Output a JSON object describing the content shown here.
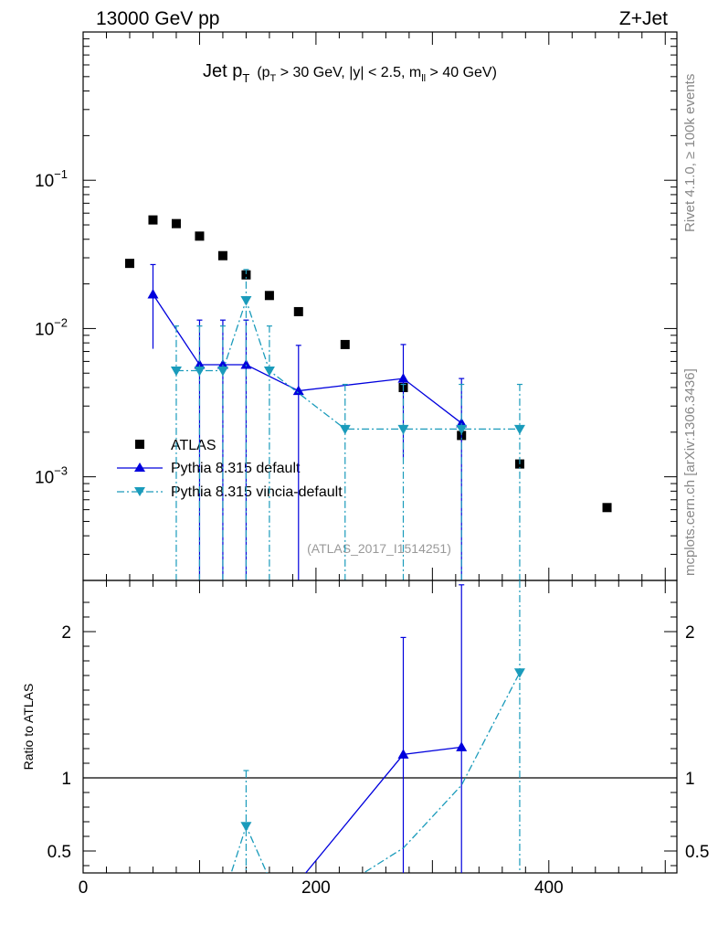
{
  "header": {
    "energy": "13000 GeV pp",
    "process": "Z+Jet",
    "side_rivet": "Rivet 4.1.0, ≥ 100k events",
    "side_mcplots": "mcplots.cern.ch [arXiv:1306.3436]",
    "analysis_id": "(ATLAS_2017_I1514251)"
  },
  "title": {
    "main": "Jet p",
    "main_sub": "T",
    "cut_open": "(p",
    "cut_sub": "T",
    "cut_rest": " > 30 GeV, |y| < 2.5, m",
    "cut_sub2": "ll",
    "cut_close": " > 40 GeV)"
  },
  "colors": {
    "atlas": "#000000",
    "default": "#0000dd",
    "vincia": "#1a9bbb",
    "unity": "#000000"
  },
  "chart_data": [
    {
      "type": "scatter",
      "panel": "main",
      "yscale": "log",
      "xlim": [
        0,
        510
      ],
      "ylim": [
        0.0002,
        1.0
      ],
      "yticks": [
        {
          "value": 0.1,
          "base": "10",
          "exp": "−1"
        },
        {
          "value": 0.01,
          "base": "10",
          "exp": "−2"
        },
        {
          "value": 0.001,
          "base": "10",
          "exp": "−3"
        }
      ],
      "series": [
        {
          "name": "ATLAS",
          "style": "markers",
          "marker": "square",
          "x": [
            40,
            60,
            80,
            100,
            120,
            140,
            160,
            185,
            225,
            275,
            325,
            375,
            450
          ],
          "y": [
            0.0275,
            0.054,
            0.051,
            0.042,
            0.031,
            0.023,
            0.0167,
            0.013,
            0.0078,
            0.004,
            0.0019,
            0.00122,
            0.00062
          ]
        },
        {
          "name": "Pythia 8.315 default",
          "style": "solid",
          "marker": "triangle-up",
          "x": [
            60,
            100,
            120,
            140,
            185,
            275,
            325
          ],
          "y": [
            0.017,
            0.0057,
            0.0057,
            0.0057,
            0.0038,
            0.0046,
            0.0023
          ],
          "err_lo": [
            0.0073,
            0.0001,
            0.0001,
            0.0001,
            0.0001,
            0.00135,
            0.0001
          ],
          "err_hi": [
            0.027,
            0.0114,
            0.0114,
            0.0114,
            0.0077,
            0.0078,
            0.0046
          ]
        },
        {
          "name": "Pythia 8.315 vincia-default",
          "style": "dashdot",
          "marker": "triangle-down",
          "x": [
            80,
            100,
            120,
            140,
            160,
            225,
            275,
            325,
            375
          ],
          "y": [
            0.0052,
            0.0052,
            0.0052,
            0.0155,
            0.0052,
            0.0021,
            0.0021,
            0.0021,
            0.0021
          ],
          "err_lo": [
            0.0001,
            0.0001,
            0.0001,
            0.0001,
            0.0001,
            0.0001,
            0.0001,
            0.0001,
            0.0001
          ],
          "err_hi": [
            0.0104,
            0.0104,
            0.0104,
            0.025,
            0.0104,
            0.0042,
            0.0042,
            0.0042,
            0.0042
          ]
        }
      ]
    },
    {
      "type": "line",
      "panel": "ratio",
      "ylabel": "Ratio to ATLAS",
      "xlim": [
        0,
        510
      ],
      "ylim": [
        0.35,
        2.35
      ],
      "xticks": [
        0,
        200,
        400
      ],
      "yticks": [
        0.5,
        1,
        2
      ],
      "reference": 1,
      "series": [
        {
          "name": "Pythia 8.315 default",
          "style": "solid",
          "marker": "triangle-up",
          "x": [
            185,
            275,
            325
          ],
          "y": [
            0.29,
            1.16,
            1.21
          ],
          "err_lo": [
            0.0,
            0.0,
            0.0
          ],
          "err_hi": [
            0.59,
            1.96,
            2.32
          ],
          "show_marker": [
            false,
            true,
            true
          ]
        },
        {
          "name": "Pythia 8.315 vincia-default",
          "style": "dashdot",
          "marker": "triangle-down",
          "x": [
            120,
            140,
            160,
            225,
            275,
            325,
            375
          ],
          "y": [
            0.17,
            0.67,
            0.31,
            0.27,
            0.52,
            0.95,
            1.72
          ],
          "err_lo": [
            0.0,
            0.0,
            0.0,
            0.0,
            0.0,
            0.0,
            0.0
          ],
          "err_hi": [
            0.34,
            1.05,
            0.62,
            0.54,
            1.04,
            1.9,
            3.44
          ],
          "show_marker": [
            false,
            true,
            false,
            false,
            false,
            false,
            true
          ]
        }
      ]
    }
  ]
}
